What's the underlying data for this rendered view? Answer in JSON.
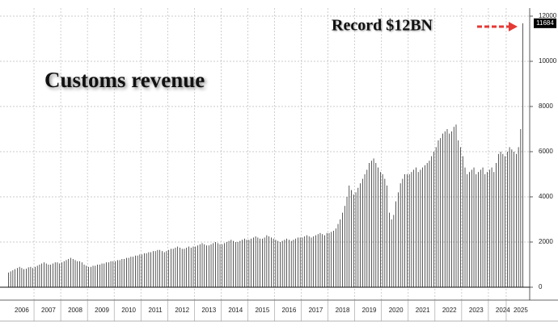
{
  "chart_data": {
    "type": "bar",
    "title": "Customs revenue",
    "annotation": "Record $12BN",
    "color": "#111111",
    "grid": true,
    "ylim": [
      0,
      12000
    ],
    "yticks": [
      0,
      2000,
      4000,
      6000,
      8000,
      10000,
      12000
    ],
    "categories": [
      null,
      null,
      null,
      null,
      null,
      null,
      "2006",
      null,
      null,
      null,
      null,
      null,
      null,
      null,
      null,
      null,
      null,
      null,
      "2007",
      null,
      null,
      null,
      null,
      null,
      null,
      null,
      null,
      null,
      null,
      null,
      "2008",
      null,
      null,
      null,
      null,
      null,
      null,
      null,
      null,
      null,
      null,
      null,
      "2009",
      null,
      null,
      null,
      null,
      null,
      null,
      null,
      null,
      null,
      null,
      null,
      "2010",
      null,
      null,
      null,
      null,
      null,
      null,
      null,
      null,
      null,
      null,
      null,
      "2011",
      null,
      null,
      null,
      null,
      null,
      null,
      null,
      null,
      null,
      null,
      null,
      "2012",
      null,
      null,
      null,
      null,
      null,
      null,
      null,
      null,
      null,
      null,
      null,
      "2013",
      null,
      null,
      null,
      null,
      null,
      null,
      null,
      null,
      null,
      null,
      null,
      "2014",
      null,
      null,
      null,
      null,
      null,
      null,
      null,
      null,
      null,
      null,
      null,
      "2015",
      null,
      null,
      null,
      null,
      null,
      null,
      null,
      null,
      null,
      null,
      null,
      "2016",
      null,
      null,
      null,
      null,
      null,
      null,
      null,
      null,
      null,
      null,
      null,
      "2017",
      null,
      null,
      null,
      null,
      null,
      null,
      null,
      null,
      null,
      null,
      null,
      "2018",
      null,
      null,
      null,
      null,
      null,
      null,
      null,
      null,
      null,
      null,
      null,
      "2019",
      null,
      null,
      null,
      null,
      null,
      null,
      null,
      null,
      null,
      null,
      null,
      "2020",
      null,
      null,
      null,
      null,
      null,
      null,
      null,
      null,
      null,
      null,
      null,
      "2021",
      null,
      null,
      null,
      null,
      null,
      null,
      null,
      null,
      null,
      null,
      null,
      "2022",
      null,
      null,
      null,
      null,
      null,
      null,
      null,
      null,
      null,
      null,
      null,
      "2023",
      null,
      null,
      null,
      null,
      null,
      null,
      null,
      null,
      null,
      null,
      null,
      "2024",
      null,
      null,
      null,
      null,
      null,
      null,
      null,
      "2025",
      null
    ],
    "values": [
      650,
      700,
      750,
      800,
      850,
      900,
      850,
      800,
      820,
      880,
      900,
      850,
      900,
      950,
      1000,
      1050,
      1100,
      1050,
      1000,
      1000,
      1050,
      1100,
      1100,
      1050,
      1100,
      1150,
      1200,
      1250,
      1300,
      1250,
      1200,
      1150,
      1150,
      1100,
      1000,
      950,
      900,
      900,
      950,
      950,
      1000,
      1000,
      1050,
      1050,
      1100,
      1100,
      1150,
      1150,
      1150,
      1200,
      1200,
      1250,
      1250,
      1300,
      1300,
      1350,
      1350,
      1400,
      1400,
      1450,
      1450,
      1500,
      1500,
      1550,
      1550,
      1600,
      1600,
      1650,
      1650,
      1600,
      1550,
      1600,
      1650,
      1700,
      1700,
      1750,
      1800,
      1750,
      1700,
      1700,
      1750,
      1800,
      1750,
      1800,
      1800,
      1850,
      1900,
      1950,
      1900,
      1850,
      1850,
      1900,
      1950,
      2000,
      1950,
      1900,
      1900,
      1950,
      2000,
      2050,
      2100,
      2050,
      2000,
      2000,
      2050,
      2100,
      2150,
      2100,
      2100,
      2150,
      2200,
      2250,
      2200,
      2150,
      2150,
      2200,
      2300,
      2250,
      2200,
      2150,
      2100,
      2050,
      2000,
      2050,
      2100,
      2150,
      2100,
      2050,
      2100,
      2150,
      2200,
      2200,
      2200,
      2250,
      2300,
      2250,
      2200,
      2250,
      2300,
      2350,
      2400,
      2350,
      2300,
      2400,
      2400,
      2450,
      2500,
      2600,
      2800,
      3000,
      3300,
      3600,
      4000,
      4500,
      4300,
      4100,
      4200,
      4400,
      4600,
      4800,
      5000,
      5200,
      5500,
      5600,
      5700,
      5500,
      5300,
      5100,
      5000,
      4800,
      4500,
      3300,
      3000,
      3200,
      3800,
      4200,
      4600,
      4800,
      5000,
      5000,
      5000,
      5100,
      5200,
      5300,
      5100,
      5200,
      5300,
      5400,
      5500,
      5600,
      5800,
      6000,
      6200,
      6500,
      6600,
      6800,
      6900,
      7000,
      6800,
      6900,
      7100,
      7200,
      6500,
      6200,
      5800,
      5300,
      5000,
      5100,
      5200,
      5300,
      5000,
      5100,
      5200,
      5300,
      5000,
      5100,
      5200,
      5300,
      5100,
      5500,
      5900,
      6000,
      5900,
      5800,
      6000,
      6200,
      6100,
      6000,
      5900,
      6200,
      7000,
      11684
    ]
  }
}
